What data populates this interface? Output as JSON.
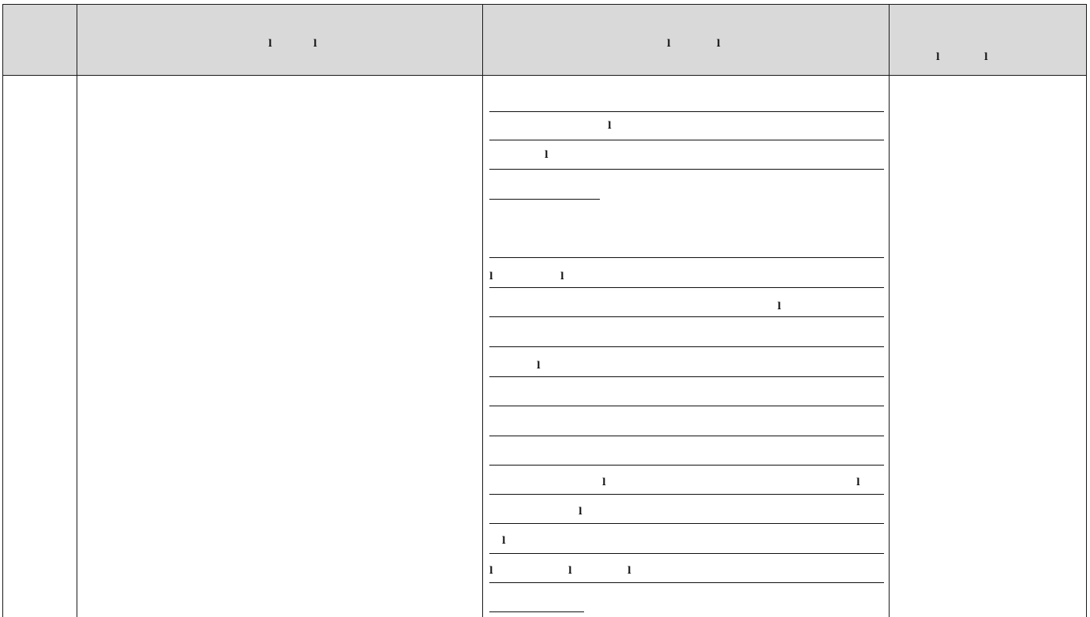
{
  "table": {
    "columns": [
      {
        "label": ""
      },
      {
        "label": ""
      },
      {
        "label": ""
      },
      {
        "label": ""
      }
    ]
  }
}
